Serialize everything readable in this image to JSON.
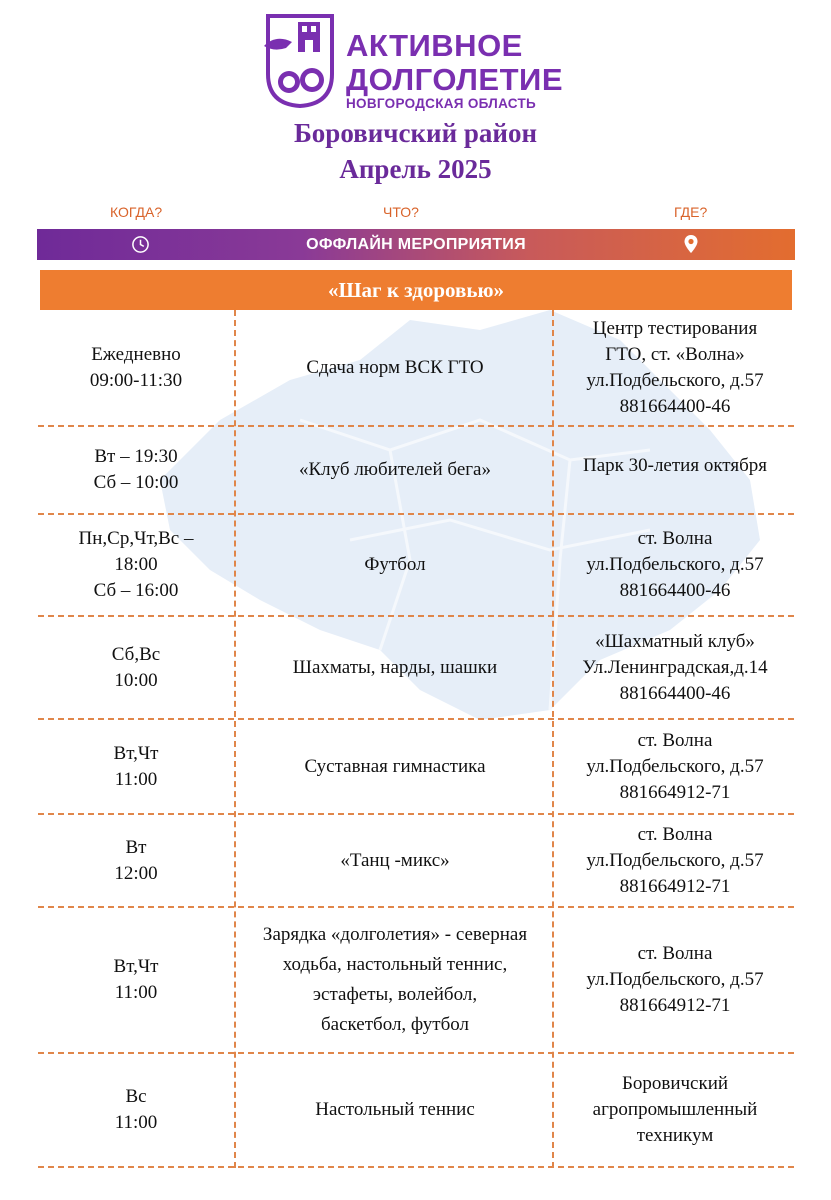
{
  "logo": {
    "line1": "АКТИВНОЕ",
    "line2": "ДОЛГОЛЕТИЕ",
    "line3": "НОВГОРОДСКАЯ ОБЛАСТЬ",
    "color": "#7a2fb0"
  },
  "header": {
    "district": "Боровичский район",
    "month": "Апрель 2025"
  },
  "columns": {
    "when": "КОГДА?",
    "what": "ЧТО?",
    "where": "ГДЕ?"
  },
  "band": {
    "label": "ОФФЛАЙН МЕРОПРИЯТИЯ",
    "icons": [
      "clock-icon",
      "location-pin-icon"
    ]
  },
  "section": {
    "title": "«Шаг к здоровью»"
  },
  "rows": [
    {
      "when": "Ежедневно\n09:00-11:30",
      "what": "Сдача норм ВСК ГТО",
      "where": "Центр тестирования\nГТО, ст. «Волна»\nул.Подбельского, д.57\n881664400-46"
    },
    {
      "when": "Вт – 19:30\nСб – 10:00",
      "what": "«Клуб любителей бега»",
      "where": "Парк 30-летия октября"
    },
    {
      "when": "Пн,Ср,Чт,Вс –\n18:00\nСб – 16:00",
      "what": "Футбол",
      "where": "ст. Волна\nул.Подбельского, д.57\n881664400-46"
    },
    {
      "when": "Сб,Вс\n10:00",
      "what": "Шахматы, нарды, шашки",
      "where": "«Шахматный клуб»\nУл.Ленинградская,д.14\n881664400-46"
    },
    {
      "when": "Вт,Чт\n11:00",
      "what": "Суставная гимнастика",
      "where": "ст. Волна\nул.Подбельского, д.57\n881664912-71"
    },
    {
      "when": "Вт\n12:00",
      "what": "«Танц -микс»",
      "where": "ст. Волна\nул.Подбельского, д.57\n881664912-71"
    },
    {
      "when": "Вт,Чт\n11:00",
      "what": "Зарядка «долголетия» - северная\nходьба, настольный теннис,\nэстафеты, волейбол,\nбаскетбол, футбол",
      "where": "ст. Волна\nул.Подбельского, д.57\n881664912-71"
    },
    {
      "when": "Вс\n11:00",
      "what": "Настольный теннис",
      "where": "Боровичский\nагропромышленный\nтехникум"
    }
  ]
}
